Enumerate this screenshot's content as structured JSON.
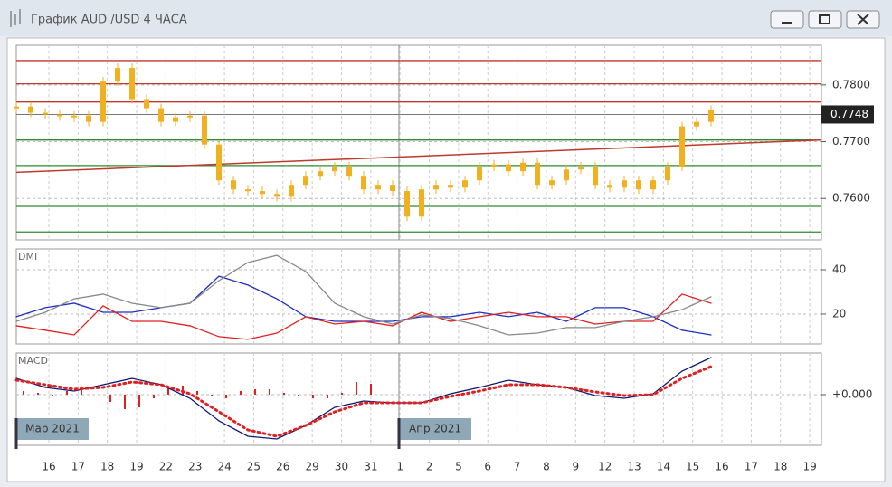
{
  "window": {
    "title": "График AUD /USD  4 ЧАСА"
  },
  "x_axis": {
    "labels": [
      "16",
      "17",
      "18",
      "19",
      "22",
      "23",
      "24",
      "25",
      "26",
      "29",
      "30",
      "31",
      "1",
      "2",
      "5",
      "6",
      "7",
      "8",
      "9",
      "12",
      "13",
      "14",
      "15",
      "16",
      "17",
      "18",
      "19"
    ]
  },
  "period_labels": [
    "Мар 2021",
    "Апр 2021"
  ],
  "chart_data": [
    {
      "type": "candlestick",
      "color": "#f0b020",
      "values": [
        0.7762,
        0.7751,
        0.7748,
        0.7746,
        0.7746,
        0.7735,
        0.7806,
        0.783,
        0.7775,
        0.7759,
        0.7735,
        0.7743,
        0.7746,
        0.7695,
        0.7632,
        0.7616,
        0.7613,
        0.7608,
        0.7603,
        0.7624,
        0.764,
        0.7648,
        0.7656,
        0.764,
        0.7616,
        0.7624,
        0.7613,
        0.7568,
        0.7616,
        0.7624,
        0.7619,
        0.7632,
        0.7656,
        0.766,
        0.7648,
        0.7663,
        0.7624,
        0.7632,
        0.7651,
        0.7656,
        0.7624,
        0.7619,
        0.7632,
        0.7616,
        0.7632,
        0.7656,
        0.7727,
        0.7735,
        0.7756
      ],
      "ylim": [
        0.7527,
        0.787
      ],
      "yticks": [
        {
          "value": 0.76,
          "label": "0.7600"
        },
        {
          "value": 0.77,
          "label": "0.7700"
        },
        {
          "value": 0.78,
          "label": "0.7800"
        }
      ],
      "levels": [
        {
          "value": 0.7843,
          "color": "#c0392b"
        },
        {
          "value": 0.7802,
          "color": "#c0392b"
        },
        {
          "value": 0.777,
          "color": "#c0392b"
        },
        {
          "value": 0.7703,
          "color": "#2e8b2e"
        },
        {
          "value": 0.7658,
          "color": "#2e8b2e"
        },
        {
          "value": 0.7586,
          "color": "#2e8b2e"
        },
        {
          "value": 0.7541,
          "color": "#2e8b2e"
        }
      ],
      "trendline": {
        "values": [
          0.7646,
          0.7703
        ],
        "color": "#c0392b"
      },
      "last_price": {
        "value": 0.7748,
        "label": "0.7748"
      }
    },
    {
      "type": "line",
      "title": "DMI",
      "ylim": [
        6.5,
        49.4
      ],
      "yticks": [
        20,
        40
      ],
      "series": [
        {
          "color": "#1f2fbf",
          "values": [
            18.8,
            22.9,
            24.9,
            20.8,
            20.8,
            22.9,
            24.9,
            37.1,
            33.1,
            26.9,
            18.8,
            16.7,
            16.7,
            16.7,
            18.8,
            18.8,
            20.8,
            18.8,
            20.8,
            16.7,
            22.9,
            22.9,
            18.8,
            12.7,
            10.6
          ]
        },
        {
          "color": "#e02020",
          "values": [
            14.7,
            12.7,
            10.6,
            23.7,
            16.7,
            16.7,
            14.7,
            9.8,
            8.6,
            11.4,
            18.8,
            15.5,
            16.7,
            14.7,
            20.8,
            16.7,
            18.8,
            20.8,
            18.8,
            18.8,
            15.5,
            16.7,
            16.7,
            29.0,
            24.9
          ]
        },
        {
          "color": "#888888",
          "values": [
            16.7,
            20.8,
            26.9,
            29.0,
            24.9,
            22.9,
            24.9,
            35.1,
            43.3,
            46.5,
            39.2,
            24.9,
            18.8,
            15.5,
            19.6,
            18.0,
            14.7,
            10.6,
            11.4,
            13.9,
            13.9,
            16.7,
            18.8,
            22.0,
            27.8
          ]
        }
      ]
    },
    {
      "type": "line",
      "title": "MACD",
      "ylim": [
        -0.0028,
        0.0023
      ],
      "yticks": [
        {
          "value": 0,
          "label": "+0.000"
        }
      ],
      "series": [
        {
          "color": "#101a70",
          "values": [
            0.0009,
            0.0004,
            0.0002,
            0.00055,
            0.0009,
            0.00055,
            -0.0002,
            -0.00145,
            -0.0023,
            -0.00245,
            -0.0017,
            -0.0007,
            -0.00035,
            -0.00045,
            -0.00045,
            5e-05,
            0.0004,
            0.0008,
            0.00055,
            0.0004,
            -5e-05,
            -0.0002,
            5e-05,
            0.0013,
            0.00205
          ]
        },
        {
          "color": "#e02020",
          "dotted": true,
          "values": [
            0.0008,
            0.00055,
            0.0003,
            0.0004,
            0.0007,
            0.00055,
            5e-05,
            -0.00095,
            -0.00195,
            -0.0023,
            -0.0017,
            -0.00095,
            -0.00045,
            -0.00045,
            -0.00045,
            -0.0001,
            0.0002,
            0.00055,
            0.00055,
            0.0004,
            0.00015,
            -5e-05,
            0,
            0.0009,
            0.00155
          ]
        }
      ],
      "histogram": {
        "color": "#e02020",
        "values": [
          0.0002,
          0.0001,
          -0.0001,
          0.0002,
          0.0003,
          0,
          -0.0004,
          -0.0008,
          -0.0007,
          -0.0002,
          0.0004,
          0.0005,
          0.0002,
          -0.0001,
          -0.0002,
          0.0002,
          0.0003,
          0.0003,
          0.0001,
          -0.0001,
          -0.0002,
          -0.0002,
          0.0001,
          0.0007,
          0.0006
        ]
      }
    }
  ]
}
